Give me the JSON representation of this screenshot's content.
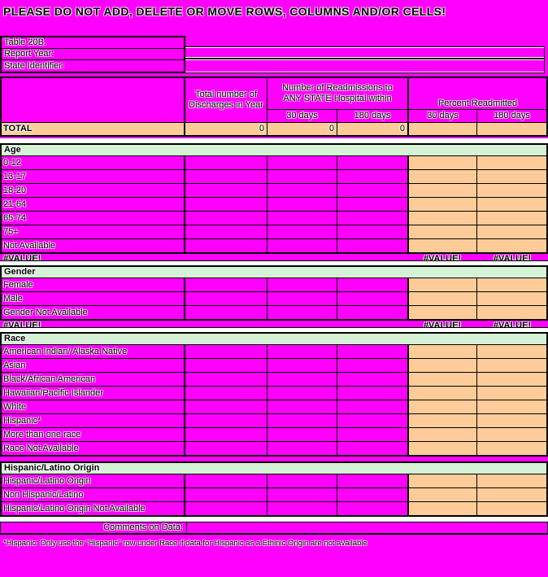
{
  "page": {
    "title": "PLEASE DO NOT ADD, DELETE OR MOVE ROWS, COLUMNS AND/OR CELLS!"
  },
  "info": {
    "table_label": "Table 20B.",
    "report_year_label": "Report Year:",
    "report_year_value": "",
    "state_identifier_label": "State Identifier:",
    "state_identifier_value": ""
  },
  "table_header": {
    "discharges": "Total number of Discharges in Year",
    "readmissions": "Number of Readmissions to ANY STATE Hospital within",
    "percent_readmitted": "Percent Readmitted",
    "days_30": "30 days",
    "days_180": "180 days"
  },
  "total_row": {
    "label": "TOTAL",
    "discharges": "0",
    "readmit_30": "0",
    "readmit_180": "0",
    "percent_30": "",
    "percent_180": ""
  },
  "sections": [
    {
      "slug": "age",
      "title": "Age",
      "rows": [
        "0-12",
        "13-17",
        "18-20",
        "21-64",
        "65-74",
        "75+",
        "Not Available"
      ],
      "error_row": true
    },
    {
      "slug": "gender",
      "title": "Gender",
      "rows": [
        "Female",
        "Male",
        "Gender Not Available"
      ],
      "error_row": true
    },
    {
      "slug": "race",
      "title": "Race",
      "rows": [
        "American Indian/ Alaska Native",
        "Asian",
        "Black/African American",
        "Hawaiian/Pacific Islander",
        "White",
        "Hispanic*",
        "More than one race",
        "Race Not Available"
      ],
      "error_row": false
    },
    {
      "slug": "hispanic-latino-origin",
      "title": "Hispanic/Latino Origin",
      "rows": [
        "Hispanic/Latino Origin",
        "Non Hispanic/Latino",
        "Hispanic/Latino Origin Not Available"
      ],
      "error_row": false
    }
  ],
  "error_text": "#VALUE!",
  "comments": {
    "label": "Comments on Data:",
    "value": ""
  },
  "footnote": "*Hispanic:   Only use the \"Hispanic\" row under Race if data for Hispanic as a Ethinic Origin are not available",
  "colors": {
    "magenta": "#FF00FF",
    "peach": "#FFCC99",
    "green": "#D6F2D6",
    "white": "#FFFFFF",
    "black": "#000000"
  }
}
